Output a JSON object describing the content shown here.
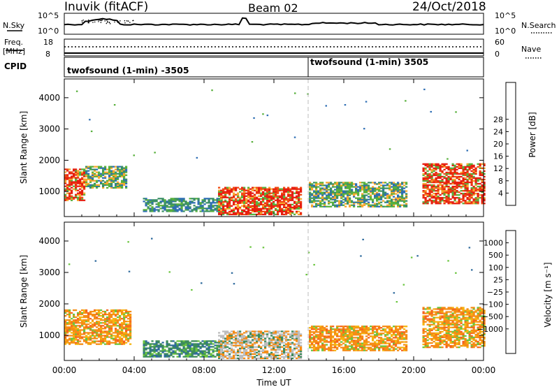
{
  "header": {
    "station": "Inuvik (fitACF)",
    "beam": "Beam 02",
    "date": "24/Oct/2018"
  },
  "noise_panel": {
    "left_label": "N.Sky",
    "left_ticks": [
      "10^5",
      "10^0"
    ],
    "right_ticks": [
      "10^5",
      "10^0"
    ],
    "right_label": "N.Search"
  },
  "freq_panel": {
    "left_label_line1": "Freq.",
    "left_label_line2": "[MHz]",
    "left_ticks": [
      "18",
      "8"
    ],
    "right_ticks": [
      "60",
      "0"
    ],
    "right_label": "Nave"
  },
  "cpid_panel": {
    "label": "CPID",
    "segments": [
      "twofsound (1-min) -3505",
      "twofsound (1-min) 3505"
    ]
  },
  "x_axis": {
    "label": "Time UT",
    "ticks": [
      "00:00",
      "04:00",
      "08:00",
      "12:00",
      "16:00",
      "20:00",
      "00:00"
    ]
  },
  "chart_data": [
    {
      "type": "heatmap",
      "title": "",
      "quantity": "Power",
      "xlabel": "Time UT",
      "ylabel": "Slant Range [km]",
      "x_range_hours": [
        0,
        24
      ],
      "y_range_km": [
        200,
        4600
      ],
      "y_ticks": [
        1000,
        2000,
        3000,
        4000
      ],
      "colorbar": {
        "label": "Power [dB]",
        "ticks": [
          "4",
          "8",
          "12",
          "16",
          "20",
          "24",
          "28"
        ],
        "colors": [
          "#1e32d2",
          "#2f6fb4",
          "#3a8f66",
          "#58b03c",
          "#9cd03a",
          "#f0dc28",
          "#f6a82e",
          "#f57c1e",
          "#f04a12",
          "#e61e10"
        ]
      },
      "echo_regions": [
        {
          "t_start": 0.0,
          "t_end": 1.2,
          "range_min": 700,
          "range_max": 1700,
          "level": "high"
        },
        {
          "t_start": 1.2,
          "t_end": 3.6,
          "range_min": 1100,
          "range_max": 1800,
          "level": "medium"
        },
        {
          "t_start": 4.5,
          "t_end": 9.0,
          "range_min": 350,
          "range_max": 800,
          "level": "low"
        },
        {
          "t_start": 8.8,
          "t_end": 13.5,
          "range_min": 250,
          "range_max": 1150,
          "level": "high"
        },
        {
          "t_start": 14.0,
          "t_end": 19.6,
          "range_min": 500,
          "range_max": 1300,
          "level": "medium"
        },
        {
          "t_start": 20.5,
          "t_end": 24.0,
          "range_min": 600,
          "range_max": 1900,
          "level": "high"
        }
      ]
    },
    {
      "type": "heatmap",
      "title": "",
      "quantity": "Velocity",
      "xlabel": "Time UT",
      "ylabel": "Slant Range [km]",
      "x_range_hours": [
        0,
        24
      ],
      "y_range_km": [
        200,
        4600
      ],
      "y_ticks": [
        1000,
        2000,
        3000,
        4000
      ],
      "colorbar": {
        "label": "Velocity [m s⁻¹]",
        "ticks": [
          "1000",
          "500",
          "100",
          "25",
          "−25",
          "−100",
          "−500",
          "−1000"
        ],
        "colors": [
          "#1a3bcc",
          "#2e6a9c",
          "#3c8c5a",
          "#6ac53e",
          "#bdbdbd",
          "#c9c9c9",
          "#f5b40f",
          "#f58c14",
          "#f5621e",
          "#f01818"
        ]
      },
      "echo_regions": [
        {
          "t_start": 0.0,
          "t_end": 3.8,
          "range_min": 700,
          "range_max": 1800,
          "level": "negative"
        },
        {
          "t_start": 4.5,
          "t_end": 9.0,
          "range_min": 300,
          "range_max": 800,
          "level": "positive"
        },
        {
          "t_start": 8.8,
          "t_end": 13.5,
          "range_min": 250,
          "range_max": 1150,
          "level": "near-zero"
        },
        {
          "t_start": 14.0,
          "t_end": 19.6,
          "range_min": 500,
          "range_max": 1300,
          "level": "negative"
        },
        {
          "t_start": 20.5,
          "t_end": 24.0,
          "range_min": 600,
          "range_max": 1900,
          "level": "negative"
        }
      ]
    }
  ]
}
